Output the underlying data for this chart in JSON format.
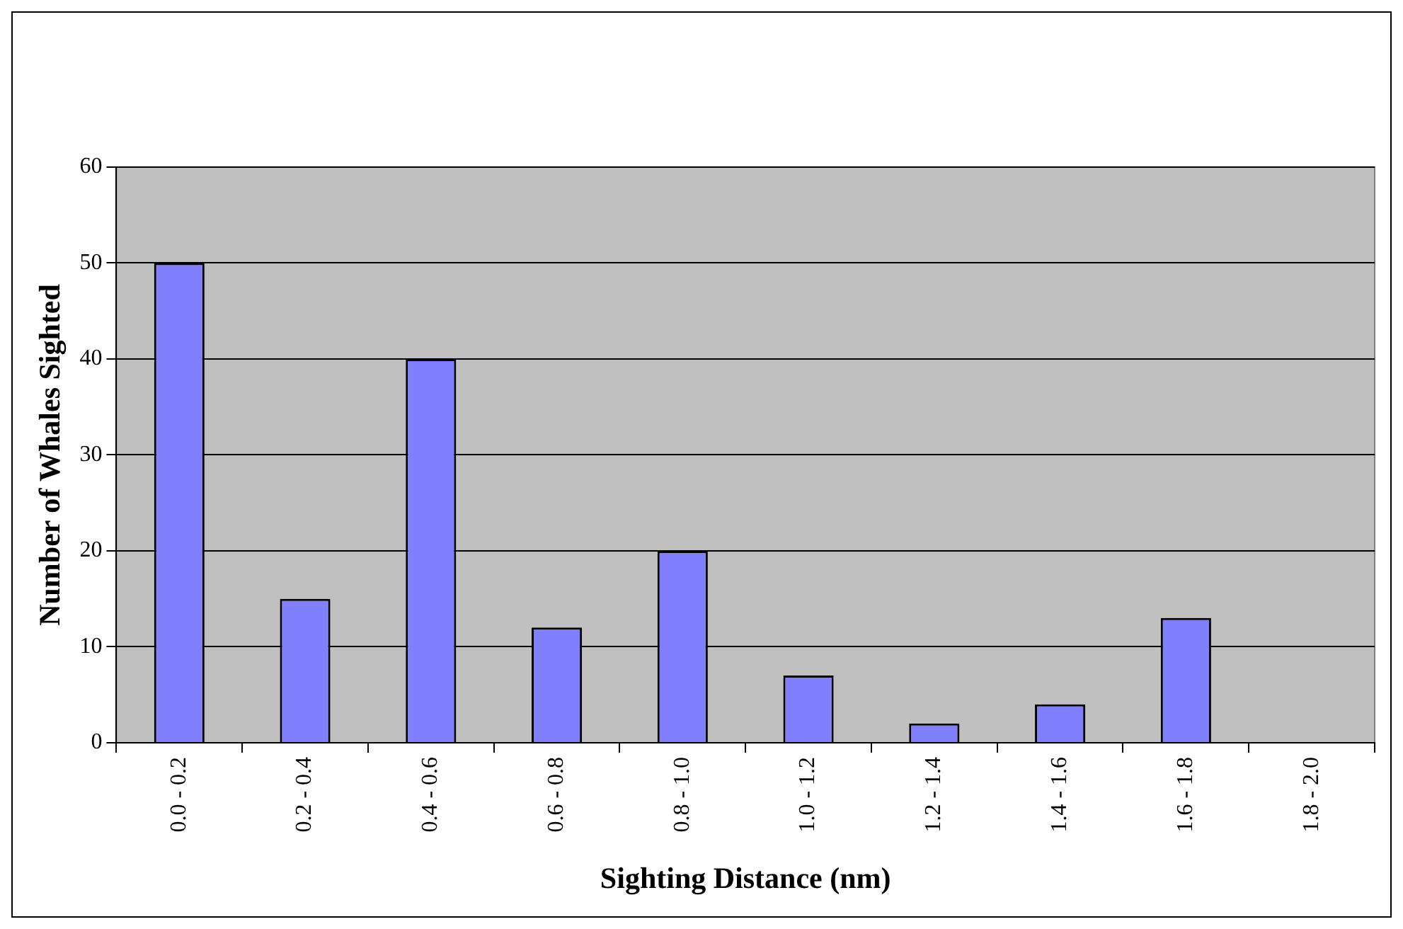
{
  "chart_data": {
    "type": "bar",
    "xlabel": "Sighting Distance (nm)",
    "ylabel": "Number of Whales Sighted",
    "categories": [
      "0.0 - 0.2",
      "0.2 - 0.4",
      "0.4 - 0.6",
      "0.6 - 0.8",
      "0.8 - 1.0",
      "1.0 - 1.2",
      "1.2 - 1.4",
      "1.4 - 1.6",
      "1.6 - 1.8",
      "1.8 - 2.0"
    ],
    "values": [
      50,
      15,
      40,
      12,
      20,
      7,
      2,
      4,
      13,
      0
    ],
    "color": "#8080ff",
    "ylim": [
      0,
      60
    ],
    "yticks": [
      0,
      10,
      20,
      30,
      40,
      50,
      60
    ],
    "grid": "y",
    "legend": false
  }
}
